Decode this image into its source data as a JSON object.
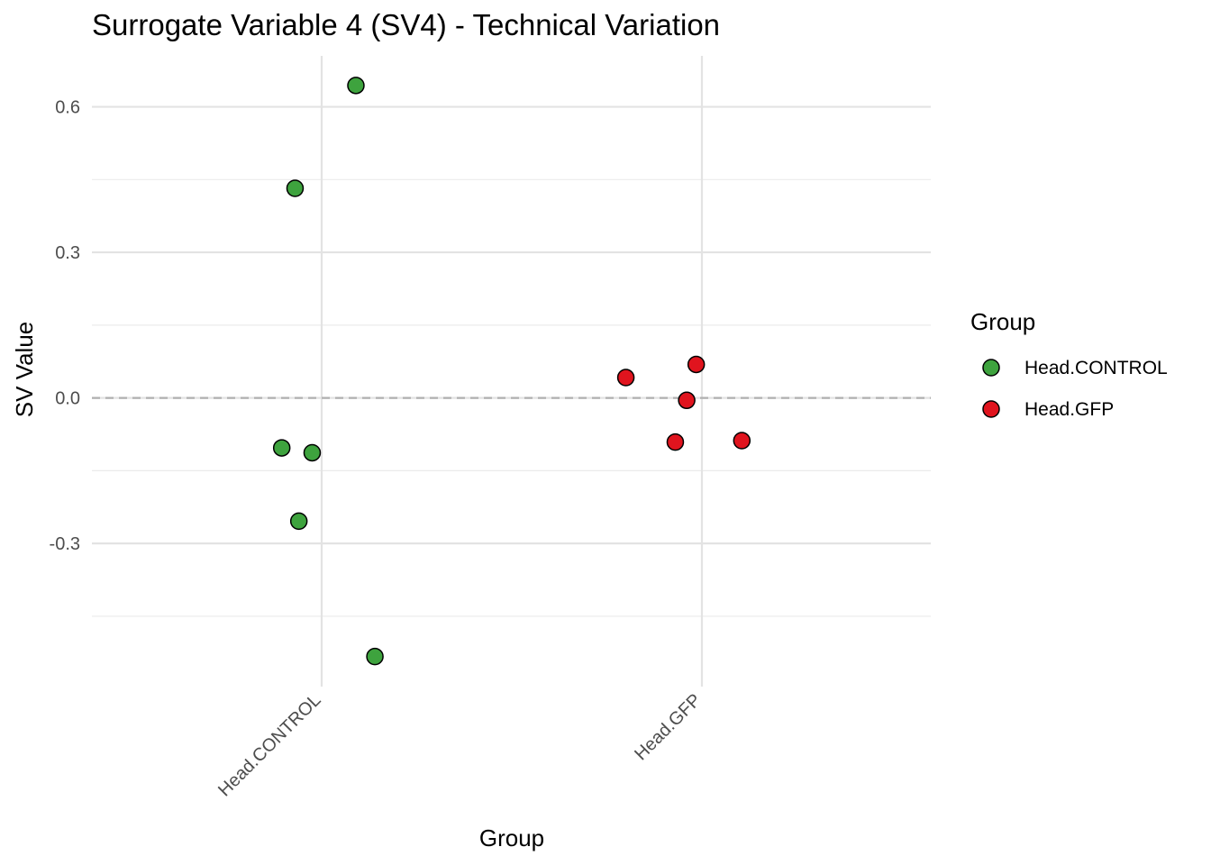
{
  "chart_data": {
    "type": "scatter",
    "title": "Surrogate Variable 4 (SV4) - Technical Variation",
    "xlabel": "Group",
    "ylabel": "SV Value",
    "categories": [
      "Head.CONTROL",
      "Head.GFP"
    ],
    "y_ticks": [
      -0.3,
      0.0,
      0.3,
      0.6
    ],
    "y_tick_labels": [
      "-0.3",
      "0.0",
      "0.3",
      "0.6"
    ],
    "ylim": [
      -0.595,
      0.705
    ],
    "reference_line": {
      "y": 0.0,
      "style": "dashed",
      "color": "#b0b0b0"
    },
    "legend": {
      "title": "Group",
      "position": "right"
    },
    "grid": true,
    "series": [
      {
        "name": "Head.CONTROL",
        "color": "#3ea33e",
        "points": [
          {
            "category": "Head.CONTROL",
            "jitter": 0.09,
            "y": 0.644
          },
          {
            "category": "Head.CONTROL",
            "jitter": -0.07,
            "y": 0.432
          },
          {
            "category": "Head.CONTROL",
            "jitter": -0.105,
            "y": -0.103
          },
          {
            "category": "Head.CONTROL",
            "jitter": -0.025,
            "y": -0.113
          },
          {
            "category": "Head.CONTROL",
            "jitter": -0.06,
            "y": -0.254
          },
          {
            "category": "Head.CONTROL",
            "jitter": 0.14,
            "y": -0.533
          }
        ]
      },
      {
        "name": "Head.GFP",
        "color": "#e0141e",
        "points": [
          {
            "category": "Head.GFP",
            "jitter": -0.2,
            "y": 0.042
          },
          {
            "category": "Head.GFP",
            "jitter": -0.015,
            "y": 0.069
          },
          {
            "category": "Head.GFP",
            "jitter": -0.04,
            "y": -0.005
          },
          {
            "category": "Head.GFP",
            "jitter": -0.07,
            "y": -0.091
          },
          {
            "category": "Head.GFP",
            "jitter": 0.105,
            "y": -0.088
          }
        ]
      }
    ]
  }
}
